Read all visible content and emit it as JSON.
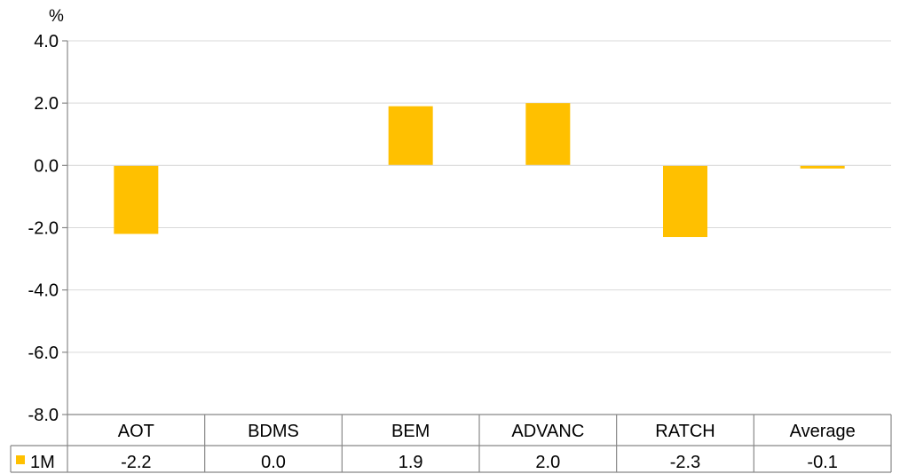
{
  "chart_data": {
    "type": "bar",
    "unit_label": "%",
    "categories": [
      "AOT",
      "BDMS",
      "BEM",
      "ADVANC",
      "RATCH",
      "Average"
    ],
    "series": [
      {
        "name": "1M",
        "color": "#FFC000",
        "values": [
          -2.2,
          0.0,
          1.9,
          2.0,
          -2.3,
          -0.1
        ],
        "value_labels": [
          "-2.2",
          "0.0",
          "1.9",
          "2.0",
          "-2.3",
          "-0.1"
        ]
      }
    ],
    "ylim": [
      -8.0,
      4.0
    ],
    "yticks": [
      4.0,
      2.0,
      0.0,
      -2.0,
      -4.0,
      -6.0,
      -8.0
    ],
    "ytick_labels": [
      "4.0",
      "2.0",
      "0.0",
      "-2.0",
      "-4.0",
      "-6.0",
      "-8.0"
    ],
    "grid": true,
    "legend": "data-table",
    "grid_color": "#D9D9D9",
    "axis_color": "#888888"
  }
}
